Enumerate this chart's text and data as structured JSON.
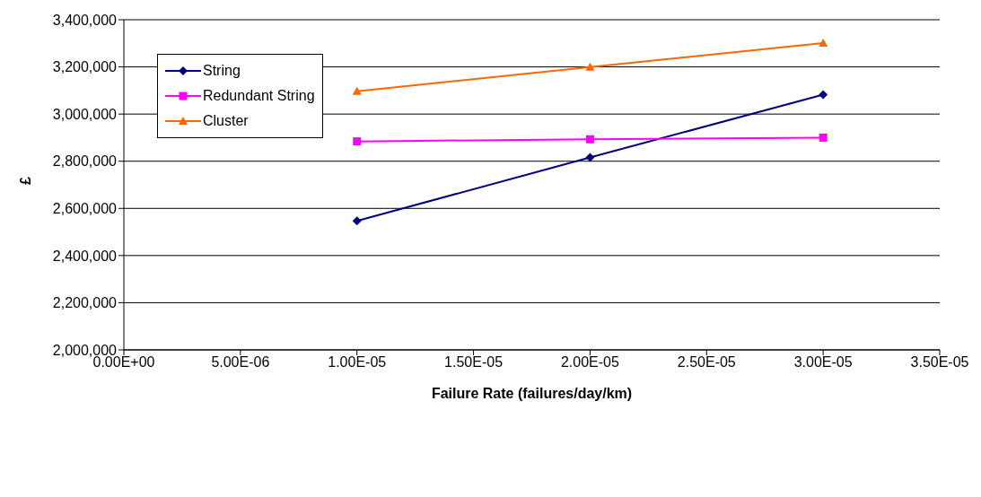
{
  "chart_data": {
    "type": "line",
    "xlabel": "Failure Rate (failures/day/km)",
    "ylabel": "£",
    "x": [
      1e-05,
      2e-05,
      3e-05
    ],
    "series": [
      {
        "name": "String",
        "color": "#000080",
        "marker": "diamond",
        "values": [
          2547000,
          2816000,
          3082000
        ]
      },
      {
        "name": "Redundant String",
        "color": "#ff00ff",
        "marker": "square",
        "values": [
          2884000,
          2893000,
          2900000
        ]
      },
      {
        "name": "Cluster",
        "color": "#ff6600",
        "marker": "triangle",
        "values": [
          3097000,
          3199000,
          3301000
        ]
      }
    ],
    "xlim": [
      0,
      3.5e-05
    ],
    "xticks": [
      {
        "value": 0,
        "label": "0.00E+00"
      },
      {
        "value": 5e-06,
        "label": "5.00E-06"
      },
      {
        "value": 1e-05,
        "label": "1.00E-05"
      },
      {
        "value": 1.5e-05,
        "label": "1.50E-05"
      },
      {
        "value": 2e-05,
        "label": "2.00E-05"
      },
      {
        "value": 2.5e-05,
        "label": "2.50E-05"
      },
      {
        "value": 3e-05,
        "label": "3.00E-05"
      },
      {
        "value": 3.5e-05,
        "label": "3.50E-05"
      }
    ],
    "ylim": [
      2000000,
      3400000
    ],
    "yticks": [
      {
        "value": 2000000,
        "label": "2,000,000"
      },
      {
        "value": 2200000,
        "label": "2,200,000"
      },
      {
        "value": 2400000,
        "label": "2,400,000"
      },
      {
        "value": 2600000,
        "label": "2,600,000"
      },
      {
        "value": 2800000,
        "label": "2,800,000"
      },
      {
        "value": 3000000,
        "label": "3,000,000"
      },
      {
        "value": 3200000,
        "label": "3,200,000"
      },
      {
        "value": 3400000,
        "label": "3,400,000"
      }
    ],
    "grid": "y",
    "legend": "top left"
  }
}
